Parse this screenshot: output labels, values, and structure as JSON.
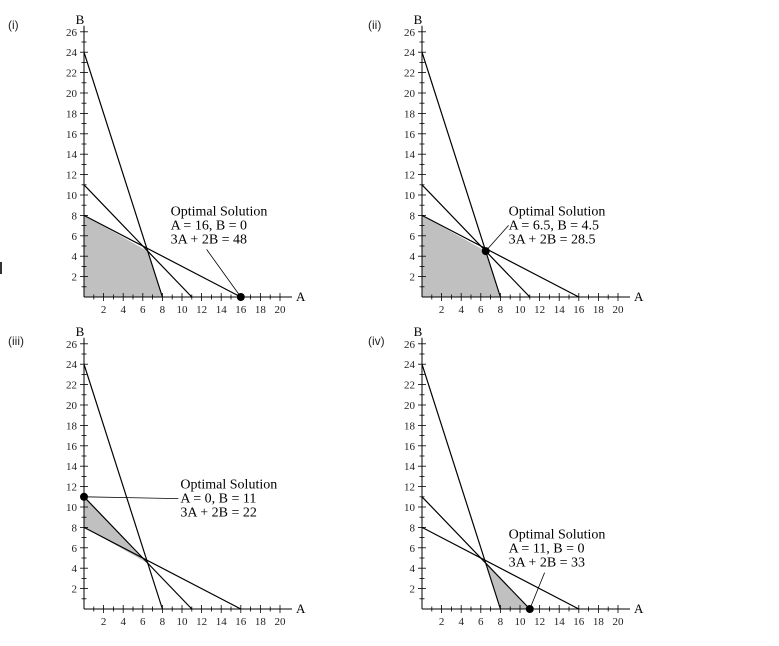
{
  "chart_data": [
    {
      "type": "line",
      "panel_label": "(i)",
      "xlabel": "A",
      "ylabel": "B",
      "xlim": [
        0,
        20
      ],
      "ylim": [
        0,
        26
      ],
      "x_ticks": [
        2,
        4,
        6,
        8,
        10,
        12,
        14,
        16,
        18,
        20
      ],
      "y_ticks": [
        2,
        4,
        6,
        8,
        10,
        12,
        14,
        16,
        18,
        20,
        22,
        24,
        26
      ],
      "constraint_lines": [
        {
          "x": [
            0,
            8
          ],
          "y": [
            24,
            0
          ]
        },
        {
          "x": [
            0,
            11
          ],
          "y": [
            11,
            0
          ]
        },
        {
          "x": [
            0,
            16
          ],
          "y": [
            8,
            0
          ]
        }
      ],
      "feasible_region": [
        [
          0,
          0
        ],
        [
          8,
          0
        ],
        [
          6.5,
          4.5
        ],
        [
          0,
          8
        ]
      ],
      "optimal_point": [
        16,
        0
      ],
      "annotation": {
        "anchor": [
          7,
          8
        ],
        "lines": [
          "Optimal Solution",
          "A = 16, B = 0",
          "3A + 2B = 48"
        ]
      }
    },
    {
      "type": "line",
      "panel_label": "(ii)",
      "xlabel": "A",
      "ylabel": "B",
      "xlim": [
        0,
        20
      ],
      "ylim": [
        0,
        26
      ],
      "x_ticks": [
        2,
        4,
        6,
        8,
        10,
        12,
        14,
        16,
        18,
        20
      ],
      "y_ticks": [
        2,
        4,
        6,
        8,
        10,
        12,
        14,
        16,
        18,
        20,
        22,
        24,
        26
      ],
      "constraint_lines": [
        {
          "x": [
            0,
            8
          ],
          "y": [
            24,
            0
          ]
        },
        {
          "x": [
            0,
            11
          ],
          "y": [
            11,
            0
          ]
        },
        {
          "x": [
            0,
            16
          ],
          "y": [
            8,
            0
          ]
        }
      ],
      "feasible_region": [
        [
          0,
          0
        ],
        [
          8,
          0
        ],
        [
          6.5,
          4.5
        ],
        [
          0,
          8
        ]
      ],
      "optimal_point": [
        6.5,
        4.5
      ],
      "annotation": {
        "anchor": [
          7,
          8
        ],
        "lines": [
          "Optimal Solution",
          "A = 6.5, B = 4.5",
          "3A + 2B = 28.5"
        ]
      }
    },
    {
      "type": "line",
      "panel_label": "(iii)",
      "xlabel": "A",
      "ylabel": "B",
      "xlim": [
        0,
        20
      ],
      "ylim": [
        0,
        26
      ],
      "x_ticks": [
        2,
        4,
        6,
        8,
        10,
        12,
        14,
        16,
        18,
        20
      ],
      "y_ticks": [
        2,
        4,
        6,
        8,
        10,
        12,
        14,
        16,
        18,
        20,
        22,
        24,
        26
      ],
      "constraint_lines": [
        {
          "x": [
            0,
            8
          ],
          "y": [
            24,
            0
          ]
        },
        {
          "x": [
            0,
            11
          ],
          "y": [
            11,
            0
          ]
        },
        {
          "x": [
            0,
            16
          ],
          "y": [
            8,
            0
          ]
        }
      ],
      "feasible_region": [
        [
          0,
          8
        ],
        [
          6.5,
          4.5
        ],
        [
          0,
          11
        ]
      ],
      "optimal_point": [
        0,
        11
      ],
      "annotation": {
        "anchor": [
          8,
          11.8
        ],
        "lines": [
          "Optimal Solution",
          "A = 0, B = 11",
          "3A + 2B = 22"
        ]
      }
    },
    {
      "type": "line",
      "panel_label": "(iv)",
      "xlabel": "A",
      "ylabel": "B",
      "xlim": [
        0,
        20
      ],
      "ylim": [
        0,
        26
      ],
      "x_ticks": [
        2,
        4,
        6,
        8,
        10,
        12,
        14,
        16,
        18,
        20
      ],
      "y_ticks": [
        2,
        4,
        6,
        8,
        10,
        12,
        14,
        16,
        18,
        20,
        22,
        24,
        26
      ],
      "constraint_lines": [
        {
          "x": [
            0,
            8
          ],
          "y": [
            24,
            0
          ]
        },
        {
          "x": [
            0,
            11
          ],
          "y": [
            11,
            0
          ]
        },
        {
          "x": [
            0,
            16
          ],
          "y": [
            8,
            0
          ]
        }
      ],
      "feasible_region": [
        [
          8,
          0
        ],
        [
          11,
          0
        ],
        [
          6.5,
          4.5
        ]
      ],
      "optimal_point": [
        11,
        0
      ],
      "annotation": {
        "anchor": [
          7,
          6.9
        ],
        "lines": [
          "Optimal Solution",
          "A = 11, B = 0",
          "3A + 2B = 33"
        ]
      }
    }
  ],
  "colors": {
    "feasible_fill": "#c0c0c0",
    "line": "#000000",
    "point": "#000000"
  }
}
